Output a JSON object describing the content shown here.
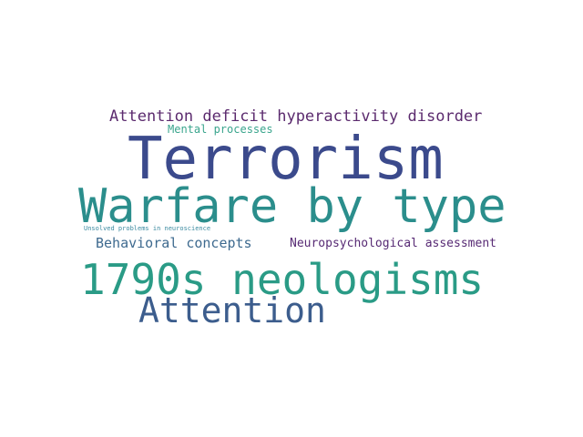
{
  "words": {
    "terrorism": "Terrorism",
    "warfare": "Warfare by type",
    "neologisms": "1790s neologisms",
    "attention": "Attention",
    "adhd": "Attention deficit hyperactivity disorder",
    "mental": "Mental processes",
    "behavioral": "Behavioral concepts",
    "neuropsych": "Neuropsychological assessment",
    "unsolved": "Unsolved problems in neuroscience"
  },
  "colors": {
    "terrorism": "#3b4a8c",
    "warfare": "#2b8e8c",
    "neologisms": "#2a9b86",
    "attention": "#3c5d8d",
    "adhd": "#5b2a6e",
    "mental": "#3aa58d",
    "behavioral": "#3e6a8f",
    "neuropsych": "#572a74",
    "unsolved": "#3b8aa0"
  }
}
